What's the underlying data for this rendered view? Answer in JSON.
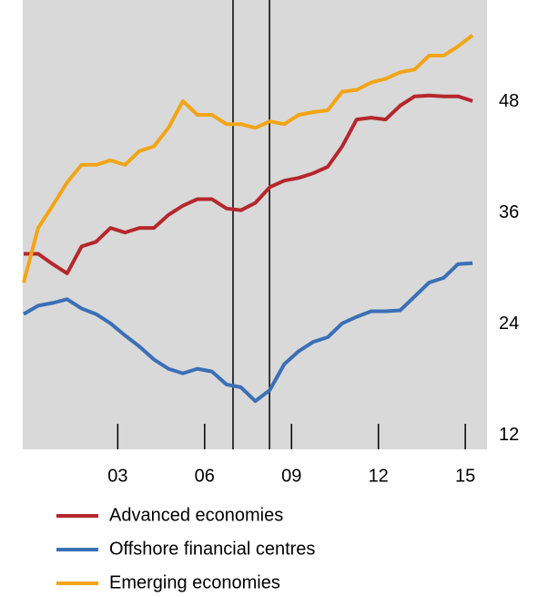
{
  "chart_data": {
    "type": "line",
    "x": [
      1999.75,
      2000.25,
      2000.75,
      2001.25,
      2001.75,
      2002.25,
      2002.75,
      2003.25,
      2003.75,
      2004.25,
      2004.75,
      2005.25,
      2005.75,
      2006.25,
      2006.75,
      2007.25,
      2007.75,
      2008.25,
      2008.75,
      2009.25,
      2009.75,
      2010.25,
      2010.75,
      2011.25,
      2011.75,
      2012.25,
      2012.75,
      2013.25,
      2013.75,
      2014.25,
      2014.75,
      2015.25
    ],
    "series": [
      {
        "name": "Advanced economies",
        "color": "#b5272d",
        "values": [
          31.6,
          31.6,
          30.5,
          29.5,
          32.4,
          32.9,
          34.4,
          33.9,
          34.4,
          34.4,
          35.8,
          36.8,
          37.5,
          37.5,
          36.5,
          36.3,
          37.1,
          38.8,
          39.5,
          39.8,
          40.3,
          41.0,
          43.2,
          46.1,
          46.3,
          46.1,
          47.6,
          48.6,
          48.7,
          48.6,
          48.6,
          48.1
        ]
      },
      {
        "name": "Offshore financial centres",
        "color": "#3b6fb6",
        "values": [
          25.1,
          26.0,
          26.3,
          26.7,
          25.7,
          25.1,
          24.1,
          22.8,
          21.6,
          20.2,
          19.2,
          18.7,
          19.2,
          18.9,
          17.5,
          17.2,
          15.7,
          16.9,
          19.7,
          21.1,
          22.1,
          22.6,
          24.1,
          24.8,
          25.4,
          25.4,
          25.5,
          27.0,
          28.5,
          29.0,
          30.5,
          30.6
        ]
      },
      {
        "name": "Emerging economies",
        "color": "#f2a516",
        "values": [
          28.5,
          34.4,
          36.8,
          39.3,
          41.2,
          41.2,
          41.7,
          41.2,
          42.7,
          43.2,
          45.2,
          48.1,
          46.6,
          46.6,
          45.6,
          45.6,
          45.2,
          45.9,
          45.6,
          46.6,
          46.9,
          47.1,
          49.1,
          49.3,
          50.1,
          50.5,
          51.2,
          51.5,
          53.0,
          53.0,
          54.0,
          55.2
        ]
      }
    ],
    "xlim": [
      1999.72,
      2015.75
    ],
    "xticks": [
      {
        "value": 2003,
        "label": "03"
      },
      {
        "value": 2006,
        "label": "06"
      },
      {
        "value": 2009,
        "label": "09"
      },
      {
        "value": 2012,
        "label": "12"
      },
      {
        "value": 2015,
        "label": "15"
      }
    ],
    "ylim": [
      10.5,
      59
    ],
    "yticks": [
      12,
      24,
      36,
      48
    ],
    "event_lines": [
      2006.98,
      2008.24
    ],
    "background": "#d9d9d9"
  }
}
